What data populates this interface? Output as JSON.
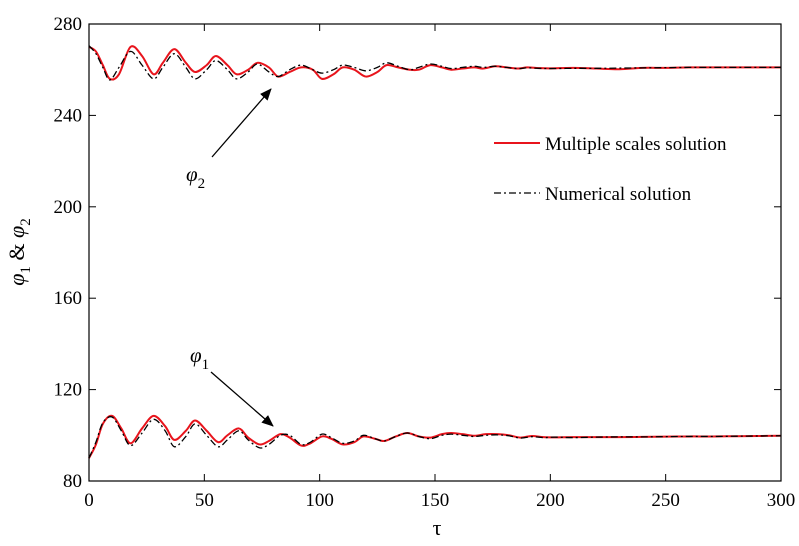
{
  "chart_data": {
    "type": "line",
    "title": "",
    "xlabel": "τ",
    "ylabel": {
      "phi": "φ",
      "sub1": "1",
      "amp": " & ",
      "sub2": "2"
    },
    "xlim": [
      0,
      300
    ],
    "ylim": [
      80,
      280
    ],
    "x_ticks": [
      0,
      50,
      100,
      150,
      200,
      250,
      300
    ],
    "y_ticks": [
      80,
      120,
      160,
      200,
      240,
      280
    ],
    "grid": false,
    "legend_position": "top-right",
    "series": [
      {
        "name": "Multiple scales solution",
        "color": "#e8141c",
        "style": "solid",
        "curves": [
          {
            "x": [
              0,
              3,
              6,
              9,
              13,
              18,
              23,
              28,
              32,
              37,
              42,
              46,
              51,
              55,
              60,
              64,
              69,
              73,
              78,
              82,
              87,
              92,
              97,
              101,
              106,
              110,
              115,
              120,
              125,
              129,
              134,
              139,
              143,
              148,
              153,
              157,
              162,
              167,
              171,
              176,
              181,
              186,
              190,
              195,
              200,
              210,
              220,
              230,
              240,
              250,
              260,
              270,
              280,
              290,
              300
            ],
            "y": [
              270,
              268,
              262,
              256,
              258,
              270,
              266,
              258,
              263,
              269,
              263,
              259,
              262,
              266,
              262,
              258,
              260,
              263,
              261,
              257,
              259,
              261,
              260,
              256,
              258,
              261,
              260,
              257,
              259,
              262,
              261,
              260,
              260,
              262,
              261,
              260,
              260.5,
              261,
              260.5,
              261.5,
              261,
              260.5,
              261,
              260.7,
              260.6,
              260.8,
              260.5,
              260.2,
              260.8,
              260.8,
              261,
              261,
              261,
              261,
              261
            ]
          },
          {
            "x": [
              0,
              3,
              6,
              10,
              14,
              18,
              23,
              28,
              33,
              37,
              42,
              46,
              51,
              56,
              60,
              65,
              69,
              74,
              78,
              83,
              87,
              92,
              96,
              101,
              105,
              110,
              115,
              119,
              124,
              128,
              133,
              138,
              143,
              148,
              153,
              157,
              162,
              167,
              172,
              177,
              182,
              187,
              192,
              197,
              202,
              210,
              220,
              230,
              240,
              250,
              260,
              270,
              280,
              290,
              300
            ],
            "y": [
              90,
              96,
              105,
              108.5,
              103,
              96.5,
              103,
              108.5,
              104,
              98,
              102,
              106.5,
              102,
              97,
              100,
              103,
              99,
              96,
              97.5,
              100.5,
              99,
              95.5,
              96.5,
              99.5,
              98.5,
              96,
              97,
              99.5,
              98.5,
              97.5,
              99.5,
              101,
              99.5,
              99,
              100.5,
              101,
              100.5,
              99.8,
              100.5,
              100.5,
              100,
              99,
              99.7,
              99.2,
              99.1,
              99.2,
              99.2,
              99.2,
              99.3,
              99.4,
              99.5,
              99.5,
              99.6,
              99.7,
              99.8
            ]
          }
        ]
      },
      {
        "name": "Numerical solution",
        "color": "#000000",
        "style": "dashdot",
        "curves": [
          {
            "x": [
              0,
              3,
              6,
              9,
              13,
              18,
              23,
              28,
              32,
              37,
              42,
              46,
              51,
              55,
              60,
              64,
              69,
              73,
              78,
              82,
              87,
              92,
              97,
              101,
              106,
              110,
              115,
              120,
              125,
              129,
              134,
              139,
              143,
              148,
              153,
              157,
              162,
              167,
              171,
              176,
              181,
              186,
              190,
              195,
              200,
              210,
              220,
              230,
              240,
              250,
              260,
              270,
              280,
              290,
              300
            ],
            "y": [
              270.5,
              267,
              261,
              255.5,
              261,
              268,
              262,
              256,
              261,
              267,
              261,
              256,
              260,
              264,
              260,
              256,
              259,
              262.5,
              259,
              257,
              260,
              262,
              260,
              258.5,
              260,
              262,
              261,
              259.5,
              261,
              263,
              261.5,
              260,
              261,
              262.5,
              261.5,
              260.5,
              261,
              261.5,
              261,
              261.5,
              261,
              260.5,
              260.8,
              260.6,
              260.5,
              260.6,
              260.6,
              260.7,
              260.8,
              260.9,
              261,
              261,
              261,
              261,
              261
            ]
          },
          {
            "x": [
              0,
              3,
              6,
              10,
              14,
              18,
              23,
              28,
              33,
              37,
              42,
              46,
              51,
              56,
              60,
              65,
              69,
              74,
              78,
              83,
              87,
              92,
              96,
              101,
              105,
              110,
              115,
              119,
              124,
              128,
              133,
              138,
              143,
              148,
              153,
              157,
              162,
              167,
              172,
              177,
              182,
              187,
              192,
              197,
              202,
              210,
              220,
              230,
              240,
              250,
              260,
              270,
              280,
              290,
              300
            ],
            "y": [
              90,
              97,
              105.5,
              108,
              102,
              95.5,
              101,
              107,
              102,
              95,
              99.5,
              105,
              100,
              95,
              98,
              102,
              98,
              94.5,
              96,
              100,
              100,
              96,
              97,
              100.5,
              99,
              96.5,
              97.5,
              100,
              98.5,
              97.5,
              99.5,
              101,
              99.5,
              98.5,
              100,
              100.5,
              100,
              99.5,
              100,
              100.2,
              99.8,
              98.8,
              99.4,
              99,
              99.2,
              99,
              99.2,
              99.3,
              99.3,
              99.4,
              99.5,
              99.5,
              99.6,
              99.7,
              99.8
            ]
          }
        ]
      }
    ],
    "annotations": [
      {
        "symbol": "φ",
        "subscript": "2",
        "points_to": {
          "x": 80,
          "y": 256
        }
      },
      {
        "symbol": "φ",
        "subscript": "1",
        "points_to": {
          "x": 80,
          "y": 98
        }
      }
    ]
  }
}
